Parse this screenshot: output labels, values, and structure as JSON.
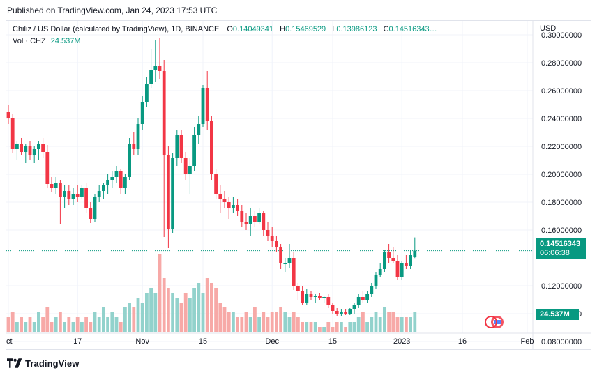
{
  "header": {
    "published": "Published on TradingView.com, Jan 24, 2023 17:53 UTC"
  },
  "legend": {
    "symbol": "Chiliz / US Dollar (calculated by TradingView), 1D, BINANCE",
    "o_label": "O",
    "o_value": "0.14049341",
    "h_label": "H",
    "h_value": "0.15469529",
    "l_label": "L",
    "l_value": "0.13986123",
    "c_label": "C",
    "c_value": "0.14516343…",
    "vol_label": "Vol · CHZ",
    "vol_value": "24.537M"
  },
  "axis": {
    "currency": "USD"
  },
  "price_badge": {
    "price": "0.14516343",
    "countdown": "06:06:38"
  },
  "volume_badge": {
    "value": "24.537M"
  },
  "footer": {
    "brand": "TradingView"
  },
  "colors": {
    "up": "#089981",
    "down": "#f23645",
    "up_volume": "#92d2cc",
    "down_volume": "#f7a9a7",
    "grid": "#f0f3fa",
    "text": "#131722"
  },
  "chart_data": {
    "type": "candlestick",
    "y_axis": {
      "range": [
        0.075,
        0.31
      ],
      "ticks": [
        "0.30000000",
        "0.28000000",
        "0.26000000",
        "0.24000000",
        "0.22000000",
        "0.20000000",
        "0.18000000",
        "0.16000000",
        "0.12000000",
        "0.10000000",
        "0.08000000"
      ]
    },
    "x_axis": {
      "labels": [
        "ct",
        "17",
        "Nov",
        "15",
        "Dec",
        "15",
        "2023",
        "16",
        "Feb"
      ],
      "label_index": [
        0,
        16,
        31,
        45,
        61,
        75,
        91,
        105,
        120
      ]
    },
    "last_price": 0.14516343,
    "candles": [
      [
        0.245,
        0.25,
        0.236,
        0.24
      ],
      [
        0.24,
        0.243,
        0.215,
        0.218
      ],
      [
        0.218,
        0.224,
        0.21,
        0.222
      ],
      [
        0.222,
        0.226,
        0.214,
        0.216
      ],
      [
        0.216,
        0.222,
        0.208,
        0.22
      ],
      [
        0.22,
        0.224,
        0.21,
        0.214
      ],
      [
        0.214,
        0.22,
        0.208,
        0.218
      ],
      [
        0.218,
        0.224,
        0.21,
        0.222
      ],
      [
        0.222,
        0.226,
        0.212,
        0.216
      ],
      [
        0.216,
        0.221,
        0.19,
        0.193
      ],
      [
        0.193,
        0.198,
        0.187,
        0.19
      ],
      [
        0.19,
        0.198,
        0.186,
        0.194
      ],
      [
        0.194,
        0.196,
        0.164,
        0.184
      ],
      [
        0.184,
        0.192,
        0.176,
        0.188
      ],
      [
        0.188,
        0.192,
        0.178,
        0.182
      ],
      [
        0.182,
        0.19,
        0.178,
        0.186
      ],
      [
        0.186,
        0.192,
        0.18,
        0.184
      ],
      [
        0.184,
        0.192,
        0.182,
        0.19
      ],
      [
        0.19,
        0.194,
        0.172,
        0.176
      ],
      [
        0.176,
        0.18,
        0.165,
        0.168
      ],
      [
        0.168,
        0.186,
        0.166,
        0.184
      ],
      [
        0.184,
        0.192,
        0.18,
        0.188
      ],
      [
        0.188,
        0.194,
        0.182,
        0.192
      ],
      [
        0.192,
        0.2,
        0.186,
        0.196
      ],
      [
        0.196,
        0.202,
        0.19,
        0.198
      ],
      [
        0.198,
        0.206,
        0.194,
        0.202
      ],
      [
        0.202,
        0.204,
        0.186,
        0.19
      ],
      [
        0.19,
        0.2,
        0.186,
        0.198
      ],
      [
        0.198,
        0.226,
        0.196,
        0.222
      ],
      [
        0.222,
        0.23,
        0.214,
        0.218
      ],
      [
        0.218,
        0.24,
        0.214,
        0.236
      ],
      [
        0.236,
        0.256,
        0.232,
        0.252
      ],
      [
        0.252,
        0.27,
        0.248,
        0.265
      ],
      [
        0.265,
        0.29,
        0.262,
        0.275
      ],
      [
        0.275,
        0.296,
        0.266,
        0.278
      ],
      [
        0.278,
        0.298,
        0.268,
        0.274
      ],
      [
        0.274,
        0.282,
        0.155,
        0.214
      ],
      [
        0.214,
        0.22,
        0.147,
        0.161
      ],
      [
        0.161,
        0.215,
        0.158,
        0.212
      ],
      [
        0.212,
        0.232,
        0.206,
        0.228
      ],
      [
        0.228,
        0.232,
        0.208,
        0.212
      ],
      [
        0.212,
        0.216,
        0.196,
        0.2
      ],
      [
        0.2,
        0.212,
        0.186,
        0.206
      ],
      [
        0.206,
        0.234,
        0.202,
        0.228
      ],
      [
        0.228,
        0.242,
        0.222,
        0.236
      ],
      [
        0.236,
        0.264,
        0.234,
        0.262
      ],
      [
        0.262,
        0.274,
        0.232,
        0.238
      ],
      [
        0.238,
        0.242,
        0.196,
        0.2
      ],
      [
        0.2,
        0.204,
        0.182,
        0.186
      ],
      [
        0.186,
        0.192,
        0.172,
        0.182
      ],
      [
        0.182,
        0.188,
        0.176,
        0.18
      ],
      [
        0.18,
        0.184,
        0.168,
        0.176
      ],
      [
        0.176,
        0.184,
        0.172,
        0.178
      ],
      [
        0.178,
        0.182,
        0.17,
        0.174
      ],
      [
        0.174,
        0.178,
        0.162,
        0.166
      ],
      [
        0.166,
        0.172,
        0.16,
        0.164
      ],
      [
        0.164,
        0.176,
        0.156,
        0.17
      ],
      [
        0.17,
        0.174,
        0.162,
        0.166
      ],
      [
        0.166,
        0.176,
        0.164,
        0.172
      ],
      [
        0.172,
        0.174,
        0.156,
        0.16
      ],
      [
        0.16,
        0.166,
        0.152,
        0.156
      ],
      [
        0.156,
        0.162,
        0.148,
        0.152
      ],
      [
        0.152,
        0.156,
        0.144,
        0.148
      ],
      [
        0.148,
        0.15,
        0.132,
        0.136
      ],
      [
        0.136,
        0.14,
        0.13,
        0.136
      ],
      [
        0.136,
        0.15,
        0.133,
        0.14
      ],
      [
        0.14,
        0.144,
        0.117,
        0.12
      ],
      [
        0.12,
        0.122,
        0.11,
        0.116
      ],
      [
        0.116,
        0.12,
        0.106,
        0.108
      ],
      [
        0.108,
        0.118,
        0.106,
        0.114
      ],
      [
        0.114,
        0.116,
        0.11,
        0.112
      ],
      [
        0.112,
        0.114,
        0.108,
        0.113
      ],
      [
        0.113,
        0.115,
        0.11,
        0.111
      ],
      [
        0.111,
        0.113,
        0.108,
        0.112
      ],
      [
        0.112,
        0.114,
        0.104,
        0.106
      ],
      [
        0.106,
        0.108,
        0.1,
        0.102
      ],
      [
        0.102,
        0.104,
        0.098,
        0.1
      ],
      [
        0.1,
        0.103,
        0.098,
        0.101
      ],
      [
        0.101,
        0.103,
        0.099,
        0.1
      ],
      [
        0.1,
        0.104,
        0.099,
        0.103
      ],
      [
        0.103,
        0.108,
        0.1,
        0.106
      ],
      [
        0.106,
        0.114,
        0.104,
        0.112
      ],
      [
        0.112,
        0.116,
        0.108,
        0.11
      ],
      [
        0.11,
        0.116,
        0.108,
        0.114
      ],
      [
        0.114,
        0.122,
        0.112,
        0.12
      ],
      [
        0.12,
        0.13,
        0.118,
        0.128
      ],
      [
        0.128,
        0.136,
        0.126,
        0.132
      ],
      [
        0.132,
        0.146,
        0.13,
        0.144
      ],
      [
        0.144,
        0.15,
        0.136,
        0.14
      ],
      [
        0.14,
        0.148,
        0.136,
        0.138
      ],
      [
        0.138,
        0.142,
        0.124,
        0.126
      ],
      [
        0.126,
        0.138,
        0.124,
        0.136
      ],
      [
        0.136,
        0.142,
        0.132,
        0.134
      ],
      [
        0.134,
        0.146,
        0.132,
        0.142
      ],
      [
        0.1405,
        0.1547,
        0.1399,
        0.1452
      ]
    ],
    "volume": [
      3,
      4,
      2,
      3,
      2,
      3,
      2,
      4,
      3,
      5,
      2,
      3,
      4,
      2,
      3,
      2,
      3,
      2,
      3,
      2,
      4,
      3,
      5,
      3,
      4,
      3,
      2,
      5,
      6,
      5,
      7,
      6,
      8,
      9,
      8,
      16,
      11,
      9,
      8,
      7,
      6,
      8,
      7,
      9,
      10,
      8,
      11,
      10,
      9,
      6,
      5,
      4,
      4,
      3,
      3,
      4,
      3,
      5,
      3,
      4,
      3,
      4,
      4,
      5,
      4,
      3,
      4,
      3,
      2,
      2,
      2,
      2,
      1,
      1,
      2,
      1,
      2,
      2,
      1,
      2,
      2,
      3,
      4,
      2,
      3,
      4,
      3,
      5,
      4,
      4,
      3,
      3,
      3,
      3,
      4
    ]
  }
}
